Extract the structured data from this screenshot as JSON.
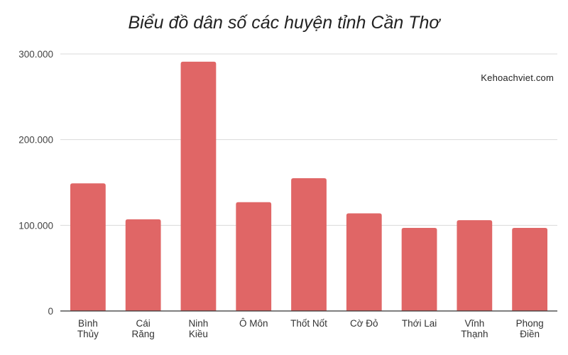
{
  "chart_data": {
    "type": "bar",
    "title": "Biểu đồ dân số các huyện tỉnh Cần Thơ",
    "watermark": "Kehoachviet.com",
    "xlabel": "",
    "ylabel": "",
    "categories": [
      [
        "Bình",
        "Thủy"
      ],
      [
        "Cái",
        "Răng"
      ],
      [
        "Ninh",
        "Kiều"
      ],
      [
        "Ô Môn"
      ],
      [
        "Thốt Nốt"
      ],
      [
        "Cờ Đỏ"
      ],
      [
        "Thới Lai"
      ],
      [
        "Vĩnh",
        "Thạnh"
      ],
      [
        "Phong",
        "Điền"
      ]
    ],
    "values": [
      149000,
      107000,
      291000,
      127000,
      155000,
      114000,
      97000,
      106000,
      97000
    ],
    "ylim": [
      0,
      300000
    ],
    "yticks": [
      0,
      100000,
      200000,
      300000
    ],
    "ytick_labels": [
      "0",
      "100.000",
      "200.000",
      "300.000"
    ],
    "grid": true,
    "bar_color": "#e06666",
    "grid_color": "#d9d9d9",
    "axis_color": "#333333"
  }
}
